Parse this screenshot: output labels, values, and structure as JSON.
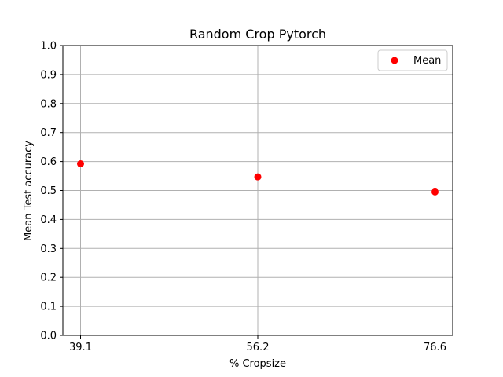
{
  "chart_data": {
    "type": "scatter",
    "title": "Random Crop Pytorch",
    "xlabel": "% Cropsize",
    "ylabel": "Mean Test accuracy",
    "categories": [
      "39.1",
      "56.2",
      "76.6"
    ],
    "series": [
      {
        "name": "Mean",
        "color": "#ff0000",
        "values": [
          0.592,
          0.547,
          0.495
        ]
      }
    ],
    "ylim": [
      0.0,
      1.0
    ],
    "yticks": [
      "0.0",
      "0.1",
      "0.2",
      "0.3",
      "0.4",
      "0.5",
      "0.6",
      "0.7",
      "0.8",
      "0.9",
      "1.0"
    ],
    "grid": true,
    "legend_position": "top-right"
  }
}
